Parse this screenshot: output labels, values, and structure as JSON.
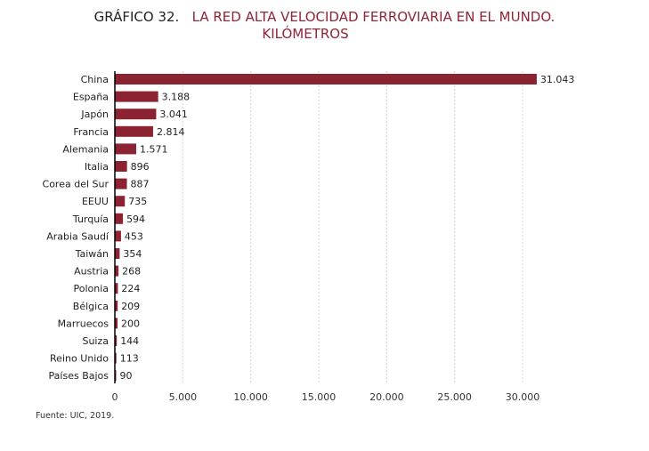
{
  "chart_data": {
    "type": "bar",
    "orientation": "horizontal",
    "title_prefix": "GRÁFICO 32.",
    "title": "LA RED ALTA VELOCIDAD FERROVIARIA EN EL MUNDO.",
    "subtitle": "KILÓMETROS",
    "categories": [
      "China",
      "España",
      "Japón",
      "Francia",
      "Alemania",
      "Italia",
      "Corea del Sur",
      "EEUU",
      "Turquía",
      "Arabia Saudí",
      "Taiwán",
      "Austria",
      "Polonia",
      "Bélgica",
      "Marruecos",
      "Suiza",
      "Reino Unido",
      "Países Bajos"
    ],
    "values": [
      31043,
      3188,
      3041,
      2814,
      1571,
      896,
      887,
      735,
      594,
      453,
      354,
      268,
      224,
      209,
      200,
      144,
      113,
      90
    ],
    "value_labels": [
      "31.043",
      "3.188",
      "3.041",
      "2.814",
      "1.571",
      "896",
      "887",
      "735",
      "594",
      "453",
      "354",
      "268",
      "224",
      "209",
      "200",
      "144",
      "113",
      "90"
    ],
    "xticks": [
      0,
      5000,
      10000,
      15000,
      20000,
      25000,
      30000
    ],
    "xtick_labels": [
      "0",
      "5.000",
      "10.000",
      "15.000",
      "20.000",
      "25.000",
      "30.000"
    ],
    "xlim": [
      0,
      30000
    ],
    "grid": "vertical dashed",
    "bar_color": "#8b2332",
    "source": "Fuente: UIC, 2019."
  }
}
